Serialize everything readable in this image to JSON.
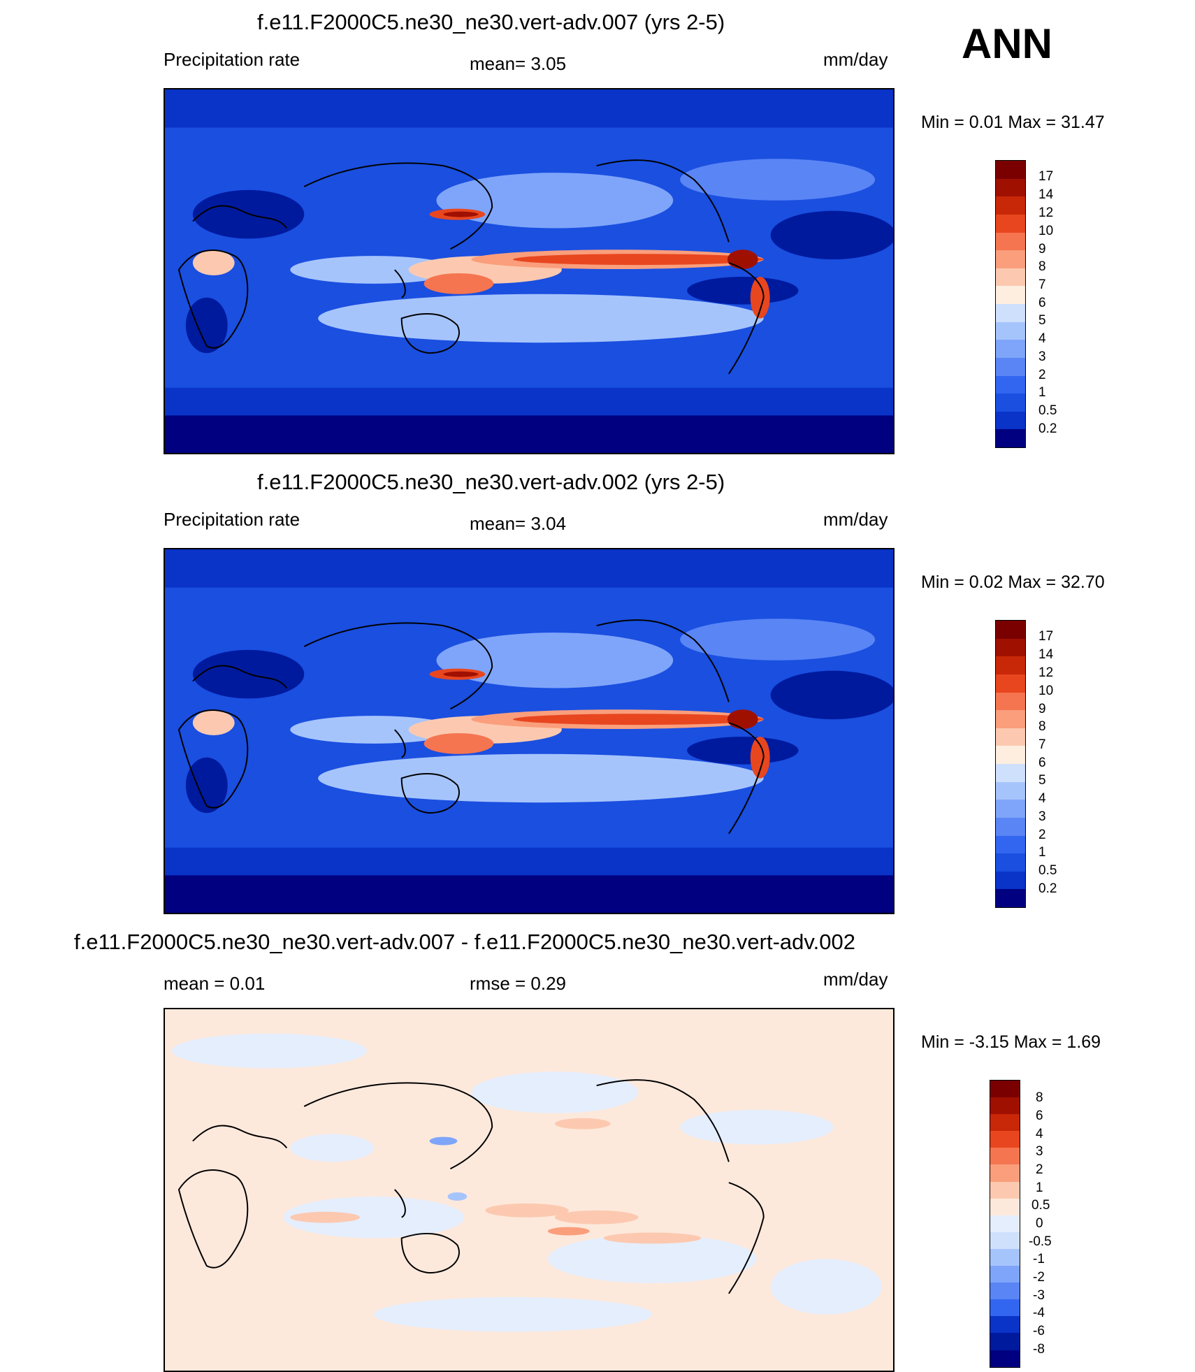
{
  "season": "ANN",
  "colors": {
    "precip_scale": [
      "#000080",
      "#001a9e",
      "#0a33c8",
      "#1a4fe0",
      "#3366f0",
      "#5a85f5",
      "#7fa5fa",
      "#a6c4fc",
      "#cfe0fd",
      "#fdeee0",
      "#fcc9b0",
      "#fa9e7c",
      "#f57550",
      "#e8461f",
      "#c82808",
      "#a01000",
      "#7a0000"
    ],
    "diff_scale": [
      "#000080",
      "#001a9e",
      "#0a33c8",
      "#1a4fe0",
      "#3366f0",
      "#5a85f5",
      "#7fa5fa",
      "#a6c4fc",
      "#cfe0fd",
      "#e5eefd",
      "#fde9dc",
      "#fcc9b0",
      "#fa9e7c",
      "#f57550",
      "#e8461f",
      "#c82808",
      "#a01000",
      "#7a0000"
    ]
  },
  "panels": [
    {
      "title": "f.e11.F2000C5.ne30_ne30.vert-adv.007 (yrs 2-5)",
      "left_label": "Precipitation rate",
      "center_label": "mean=   3.05",
      "units": "mm/day",
      "minmax": "Min =    0.01 Max =  31.47",
      "colorbar_labels": [
        "17",
        "14",
        "12",
        "10",
        "9",
        "8",
        "7",
        "6",
        "5",
        "4",
        "3",
        "2",
        "1",
        "0.5",
        "0.2"
      ]
    },
    {
      "title": "f.e11.F2000C5.ne30_ne30.vert-adv.002 (yrs 2-5)",
      "left_label": "Precipitation rate",
      "center_label": "mean=   3.04",
      "units": "mm/day",
      "minmax": "Min =    0.02 Max =  32.70",
      "colorbar_labels": [
        "17",
        "14",
        "12",
        "10",
        "9",
        "8",
        "7",
        "6",
        "5",
        "4",
        "3",
        "2",
        "1",
        "0.5",
        "0.2"
      ]
    },
    {
      "title": "f.e11.F2000C5.ne30_ne30.vert-adv.007 - f.e11.F2000C5.ne30_ne30.vert-adv.002",
      "left_label": "mean =    0.01",
      "center_label": "rmse =    0.29",
      "units": "mm/day",
      "minmax": "Min =  -3.15 Max =    1.69",
      "colorbar_labels": [
        "8",
        "6",
        "4",
        "3",
        "2",
        "1",
        "0.5",
        "0",
        "-0.5",
        "-1",
        "-2",
        "-3",
        "-4",
        "-6",
        "-8"
      ]
    }
  ]
}
